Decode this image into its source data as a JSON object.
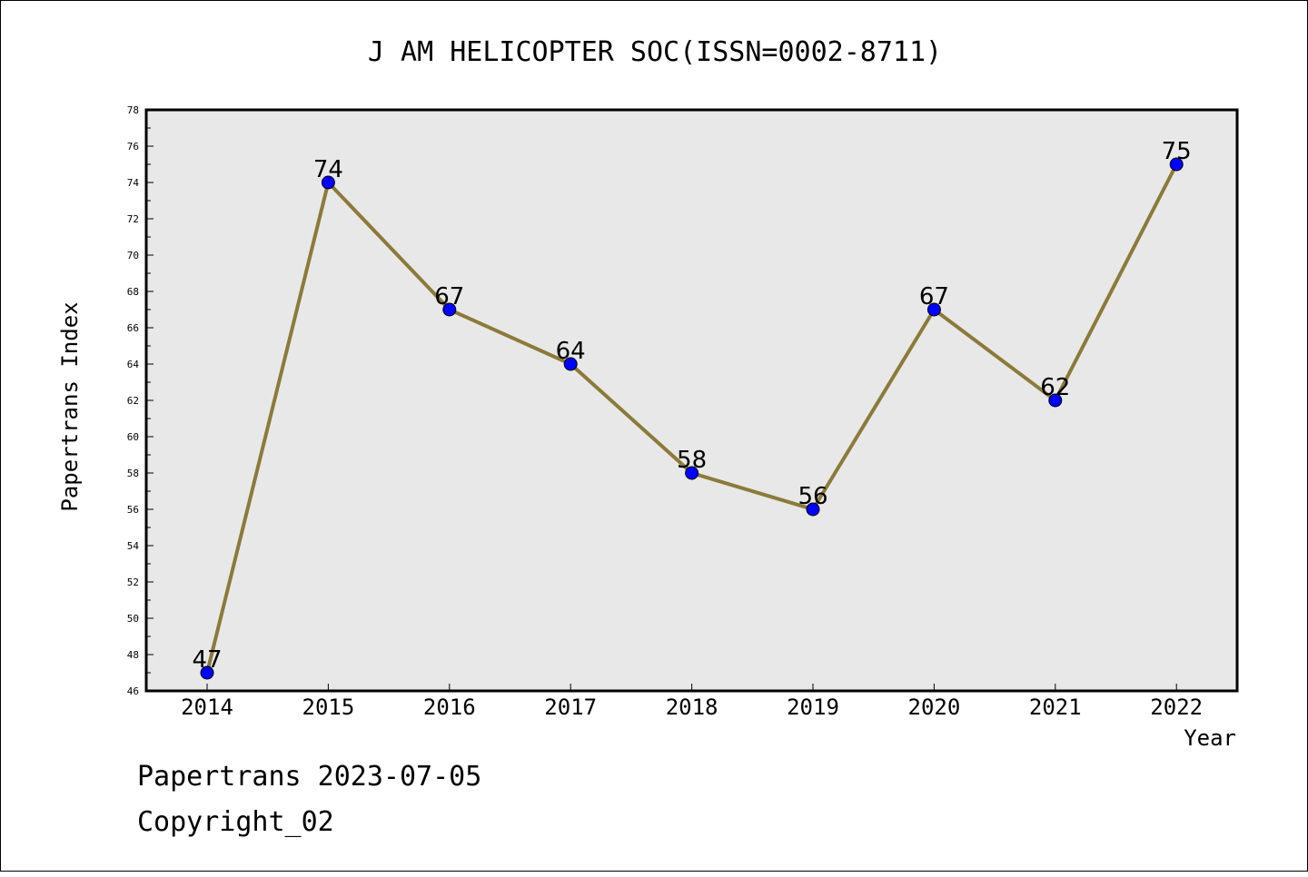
{
  "chart_data": {
    "type": "line",
    "title": "J AM HELICOPTER SOC(ISSN=0002-8711)",
    "xlabel": "Year",
    "ylabel": "Papertrans Index",
    "x": [
      "2014",
      "2015",
      "2016",
      "2017",
      "2018",
      "2019",
      "2020",
      "2021",
      "2022"
    ],
    "series": [
      {
        "values": [
          47,
          74,
          67,
          64,
          58,
          56,
          67,
          62,
          75
        ],
        "line_color": "#8B7A3A",
        "marker_color": "#0000FF"
      }
    ],
    "ylim": [
      46,
      78
    ],
    "yticks": [
      46,
      48,
      50,
      52,
      54,
      56,
      58,
      60,
      62,
      64,
      66,
      68,
      70,
      72,
      74,
      76,
      78
    ],
    "grid": false,
    "legend": "none",
    "plot_background": "#E8E8E8"
  },
  "footer": {
    "line1": "Papertrans 2023-07-05",
    "line2": "Copyright_02"
  }
}
